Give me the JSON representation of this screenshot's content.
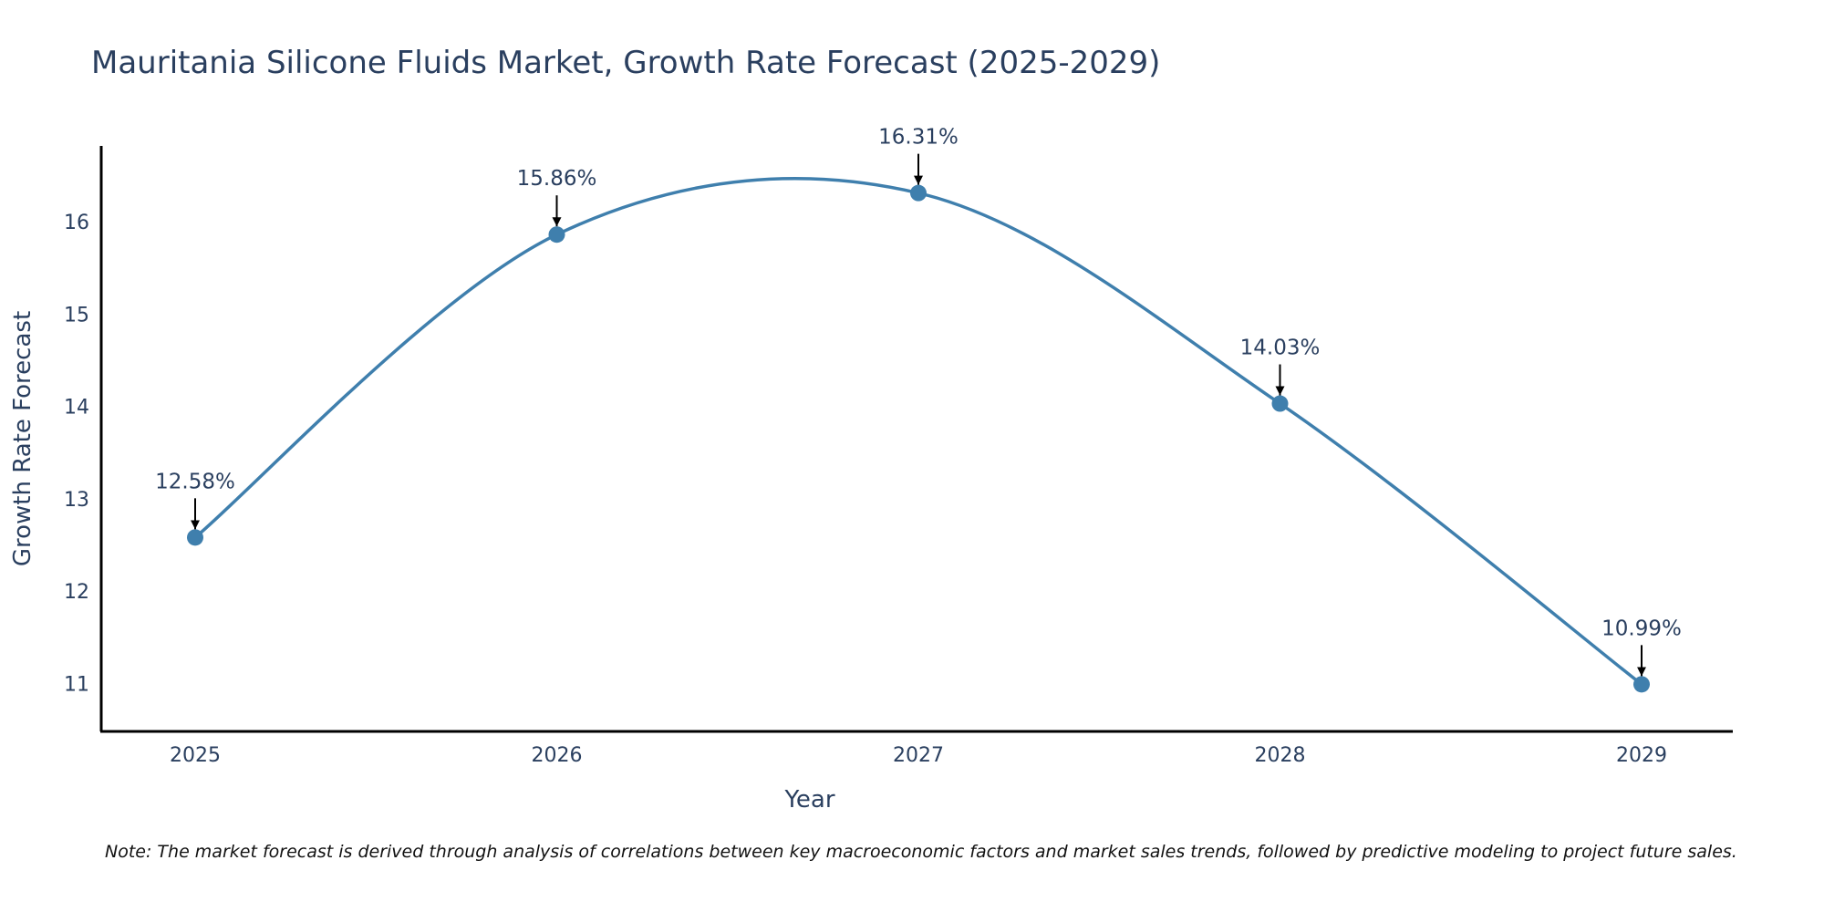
{
  "chart_data": {
    "type": "line",
    "title": "Mauritania Silicone Fluids Market, Growth Rate Forecast (2025-2029)",
    "xlabel": "Year",
    "ylabel": "Growth Rate Forecast",
    "categories": [
      "2025",
      "2026",
      "2027",
      "2028",
      "2029"
    ],
    "series": [
      {
        "name": "Growth Rate Forecast",
        "values": [
          12.58,
          15.86,
          16.31,
          14.03,
          10.99
        ]
      }
    ],
    "annotations": [
      "12.58%",
      "15.86%",
      "16.31%",
      "14.03%",
      "10.99%"
    ],
    "ylim": [
      10.48,
      16.82
    ],
    "yticks": [
      11,
      12,
      13,
      14,
      15,
      16
    ],
    "line_color": "#3f7fad",
    "marker_color": "#3f7fad",
    "grid": false,
    "note": "Note: The market forecast is derived through analysis of correlations between key macroeconomic factors and market sales trends, followed by predictive modeling to project future sales."
  }
}
